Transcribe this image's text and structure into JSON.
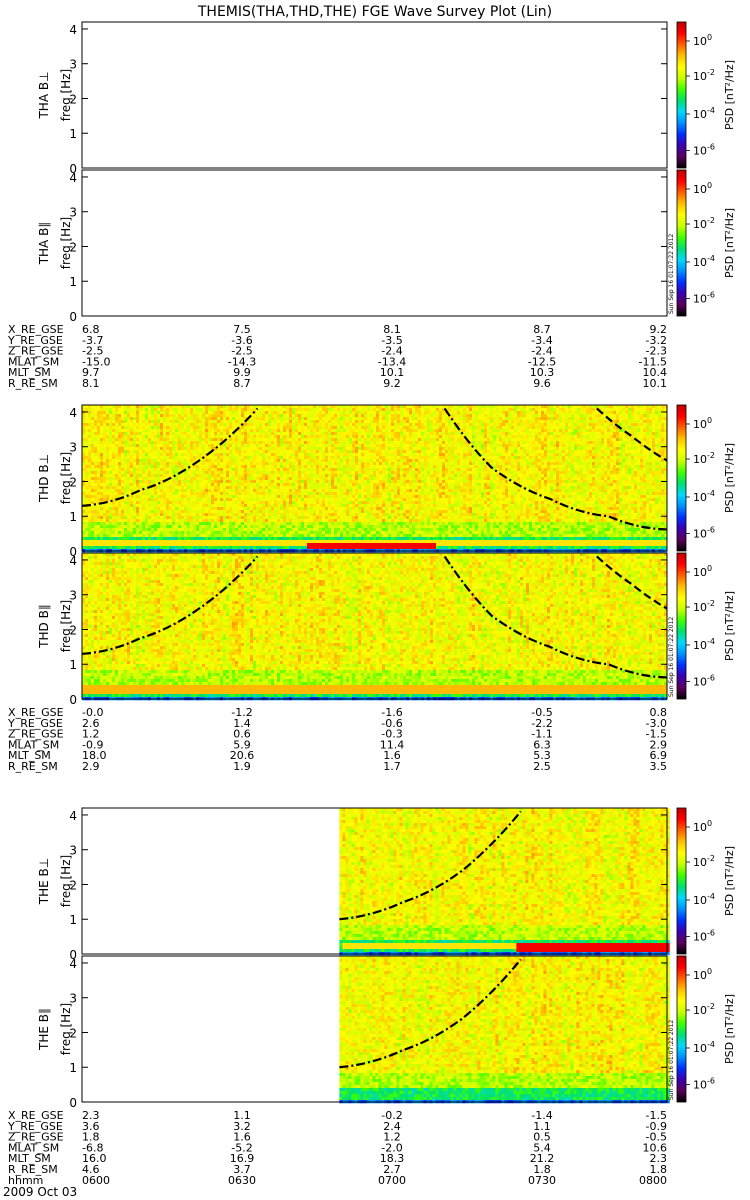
{
  "title": "THEMIS(THA,THD,THE) FGE Wave Survey Plot (Lin)",
  "date_label": "2009 Oct 03",
  "stamp": "Sun Sep 16 01:07:22 2012",
  "colorbar": {
    "label": "PSD [nT²/Hz]",
    "ticks": [
      {
        "base": "10",
        "exp": "0"
      },
      {
        "base": "10",
        "exp": "-2"
      },
      {
        "base": "10",
        "exp": "-4"
      },
      {
        "base": "10",
        "exp": "-6"
      }
    ],
    "stops": [
      "#000000",
      "#5a005a",
      "#3a00b0",
      "#0030ff",
      "#0090ff",
      "#00d8ff",
      "#00e070",
      "#40ff00",
      "#c8ff00",
      "#ffff00",
      "#ffc000",
      "#ff6000",
      "#ff0000",
      "#c00000"
    ]
  },
  "freq_axis": {
    "label": "freq [Hz]",
    "ticks": [
      "0",
      "1",
      "2",
      "3",
      "4"
    ],
    "range": [
      0,
      4.2
    ]
  },
  "chart_data": [
    {
      "type": "heatmap",
      "spacecraft": "THA",
      "panels": [
        {
          "label": "THA B⊥",
          "has_data": false
        },
        {
          "label": "THA B∥",
          "has_data": false
        }
      ],
      "ephemeris": {
        "rows": [
          {
            "name": "X_RE_GSE",
            "values": [
              "6.8",
              "7.5",
              "8.1",
              "8.7",
              "9.2"
            ]
          },
          {
            "name": "Y_RE_GSE",
            "values": [
              "-3.7",
              "-3.6",
              "-3.5",
              "-3.4",
              "-3.2"
            ]
          },
          {
            "name": "Z_RE_GSE",
            "values": [
              "-2.5",
              "-2.5",
              "-2.4",
              "-2.4",
              "-2.3"
            ]
          },
          {
            "name": "MLAT_SM",
            "values": [
              "-15.0",
              "-14.3",
              "-13.4",
              "-12.5",
              "-11.5"
            ]
          },
          {
            "name": "MLT_SM",
            "values": [
              "9.7",
              "9.9",
              "10.1",
              "10.3",
              "10.4"
            ]
          },
          {
            "name": "R_RE_SM",
            "values": [
              "8.1",
              "8.7",
              "9.2",
              "9.6",
              "10.1"
            ]
          }
        ]
      }
    },
    {
      "type": "heatmap",
      "spacecraft": "THD",
      "data_start": 0.0,
      "panels": [
        {
          "label": "THD B⊥",
          "has_data": true,
          "curves": [
            {
              "style": "dashdot",
              "points": [
                [
                  0.0,
                  1.3
                ],
                [
                  0.1,
                  1.75
                ],
                [
                  0.2,
                  2.6
                ],
                [
                  0.3,
                  4.1
                ]
              ]
            },
            {
              "style": "dashdot",
              "points": [
                [
                  0.62,
                  4.1
                ],
                [
                  0.7,
                  2.4
                ],
                [
                  0.8,
                  1.5
                ],
                [
                  0.9,
                  1.0
                ],
                [
                  1.0,
                  0.62
                ]
              ]
            },
            {
              "style": "dashed",
              "points": [
                [
                  0.88,
                  4.1
                ],
                [
                  0.94,
                  3.3
                ],
                [
                  1.0,
                  2.6
                ]
              ]
            }
          ],
          "bands": [
            {
              "f": 0.25,
              "strength": 0.35,
              "x0": 0.0,
              "x1": 1.0
            },
            {
              "f": 0.2,
              "strength": 0.95,
              "x0": 0.38,
              "x1": 0.6
            }
          ]
        },
        {
          "label": "THD B∥",
          "has_data": true,
          "curves": [
            {
              "style": "dashdot",
              "points": [
                [
                  0.0,
                  1.3
                ],
                [
                  0.1,
                  1.75
                ],
                [
                  0.2,
                  2.6
                ],
                [
                  0.3,
                  4.1
                ]
              ]
            },
            {
              "style": "dashdot",
              "points": [
                [
                  0.62,
                  4.1
                ],
                [
                  0.7,
                  2.4
                ],
                [
                  0.8,
                  1.5
                ],
                [
                  0.9,
                  1.0
                ],
                [
                  1.0,
                  0.62
                ]
              ]
            },
            {
              "style": "dashed",
              "points": [
                [
                  0.88,
                  4.1
                ],
                [
                  0.94,
                  3.3
                ],
                [
                  1.0,
                  2.6
                ]
              ]
            }
          ],
          "bands": [
            {
              "f": 0.32,
              "strength": 0.5,
              "x0": 0.0,
              "x1": 1.0
            }
          ]
        }
      ],
      "ephemeris": {
        "rows": [
          {
            "name": "X_RE_GSE",
            "values": [
              "-0.0",
              "-1.2",
              "-1.6",
              "-0.5",
              "0.8"
            ]
          },
          {
            "name": "Y_RE_GSE",
            "values": [
              "2.6",
              "1.4",
              "-0.6",
              "-2.2",
              "-3.0"
            ]
          },
          {
            "name": "Z_RE_GSE",
            "values": [
              "1.2",
              "0.6",
              "-0.3",
              "-1.1",
              "-1.5"
            ]
          },
          {
            "name": "MLAT_SM",
            "values": [
              "-0.9",
              "5.9",
              "11.4",
              "6.3",
              "2.9"
            ]
          },
          {
            "name": "MLT_SM",
            "values": [
              "18.0",
              "20.6",
              "1.6",
              "5.3",
              "6.9"
            ]
          },
          {
            "name": "R_RE_SM",
            "values": [
              "2.9",
              "1.9",
              "1.7",
              "2.5",
              "3.5"
            ]
          }
        ]
      }
    },
    {
      "type": "heatmap",
      "spacecraft": "THE",
      "data_start": 0.44,
      "panels": [
        {
          "label": "THE B⊥",
          "has_data": true,
          "curves": [
            {
              "style": "dashdot",
              "points": [
                [
                  0.44,
                  1.0
                ],
                [
                  0.55,
                  1.5
                ],
                [
                  0.65,
                  2.4
                ],
                [
                  0.75,
                  4.1
                ]
              ]
            }
          ],
          "bands": [
            {
              "f": 0.25,
              "strength": 0.35,
              "x0": 0.44,
              "x1": 1.0
            },
            {
              "f": 0.22,
              "strength": 0.95,
              "x0": 0.74,
              "x1": 1.0
            }
          ]
        },
        {
          "label": "THE B∥",
          "has_data": true,
          "curves": [
            {
              "style": "dashdot",
              "points": [
                [
                  0.44,
                  1.0
                ],
                [
                  0.55,
                  1.5
                ],
                [
                  0.65,
                  2.4
                ],
                [
                  0.75,
                  4.1
                ]
              ]
            }
          ],
          "bands": []
        }
      ],
      "ephemeris": {
        "rows": [
          {
            "name": "X_RE_GSE",
            "values": [
              "2.3",
              "1.1",
              "-0.2",
              "-1.4",
              "-1.5"
            ]
          },
          {
            "name": "Y_RE_GSE",
            "values": [
              "3.6",
              "3.2",
              "2.4",
              "1.1",
              "-0.9"
            ]
          },
          {
            "name": "Z_RE_GSE",
            "values": [
              "1.8",
              "1.6",
              "1.2",
              "0.5",
              "-0.5"
            ]
          },
          {
            "name": "MLAT_SM",
            "values": [
              "-6.8",
              "-5.2",
              "-2.0",
              "5.4",
              "10.6"
            ]
          },
          {
            "name": "MLT_SM",
            "values": [
              "16.0",
              "16.9",
              "18.3",
              "21.2",
              "2.3"
            ]
          },
          {
            "name": "R_RE_SM",
            "values": [
              "4.6",
              "3.7",
              "2.7",
              "1.8",
              "1.8"
            ]
          },
          {
            "name": "hhmm",
            "values": [
              "0600",
              "0630",
              "0700",
              "0730",
              "0800"
            ]
          }
        ]
      }
    }
  ]
}
